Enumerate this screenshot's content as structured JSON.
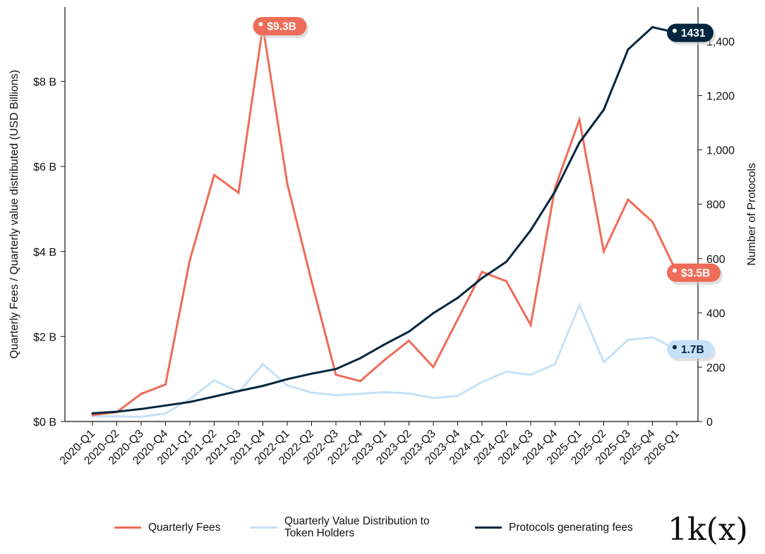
{
  "chart_data": {
    "type": "line",
    "categories": [
      "2020-Q1",
      "2020-Q2",
      "2020-Q3",
      "2020-Q4",
      "2021-Q1",
      "2021-Q2",
      "2021-Q3",
      "2021-Q4",
      "2022-Q1",
      "2022-Q2",
      "2022-Q3",
      "2022-Q4",
      "2023-Q1",
      "2023-Q2",
      "2023-Q3",
      "2023-Q4",
      "2024-Q1",
      "2024-Q2",
      "2024-Q3",
      "2024-Q4",
      "2025-Q1",
      "2025-Q2",
      "2025-Q3",
      "2025-Q4",
      "2026-Q1"
    ],
    "series": [
      {
        "name": "Quarterly Fees",
        "axis": "left",
        "color": "#ee6c58",
        "values": [
          0.15,
          0.22,
          0.65,
          0.87,
          3.8,
          5.8,
          5.38,
          9.3,
          5.6,
          3.3,
          1.1,
          0.95,
          1.45,
          1.9,
          1.28,
          2.4,
          3.52,
          3.3,
          2.27,
          5.5,
          7.1,
          4.0,
          5.22,
          4.7,
          3.5
        ]
      },
      {
        "name": "Quarterly Value Distribution to\nToken Holders",
        "axis": "left",
        "color": "#c6e1f7",
        "values": [
          0.12,
          0.12,
          0.11,
          0.19,
          0.52,
          0.97,
          0.69,
          1.35,
          0.85,
          0.68,
          0.62,
          0.65,
          0.69,
          0.66,
          0.55,
          0.6,
          0.93,
          1.17,
          1.1,
          1.35,
          2.74,
          1.4,
          1.92,
          1.98,
          1.7
        ]
      },
      {
        "name": "Protocols generating fees",
        "axis": "right",
        "color": "#00263e",
        "values": [
          30,
          36,
          46,
          59,
          72,
          92,
          112,
          131,
          156,
          176,
          193,
          233,
          284,
          331,
          399,
          455,
          528,
          588,
          704,
          847,
          1027,
          1148,
          1370,
          1452,
          1431
        ]
      }
    ],
    "ylabel": "Quarterly Fees / Quarterly value distributed (USD Billions)",
    "y2label": "Number of Protocols",
    "ylim": [
      0,
      9.75
    ],
    "y2lim": [
      0,
      1526
    ],
    "yticks": [
      0,
      2,
      4,
      6,
      8
    ],
    "ytick_labels": [
      "$0 B",
      "$2 B",
      "$4 B",
      "$6 B",
      "$8 B"
    ],
    "y2ticks": [
      0,
      200,
      400,
      600,
      800,
      1000,
      1200,
      1400
    ],
    "y2tick_labels": [
      "0",
      "200",
      "400",
      "600",
      "800",
      "1,000",
      "1,200",
      "1,400"
    ],
    "annotations": [
      {
        "label": "$9.3B",
        "series": 0,
        "index": 7,
        "bg": "#ee6c58",
        "fg": "#ffffff"
      },
      {
        "label": "1431",
        "series": 2,
        "index": 24,
        "bg": "#00263e",
        "fg": "#ffffff"
      },
      {
        "label": "$3.5B",
        "series": 0,
        "index": 24,
        "bg": "#ee6c58",
        "fg": "#ffffff"
      },
      {
        "label": "1.7B",
        "series": 1,
        "index": 24,
        "bg": "#c6e1f7",
        "fg": "#00263e"
      }
    ],
    "legend_position": "bottom"
  },
  "brand": {
    "logo_text": "1k(x)"
  }
}
